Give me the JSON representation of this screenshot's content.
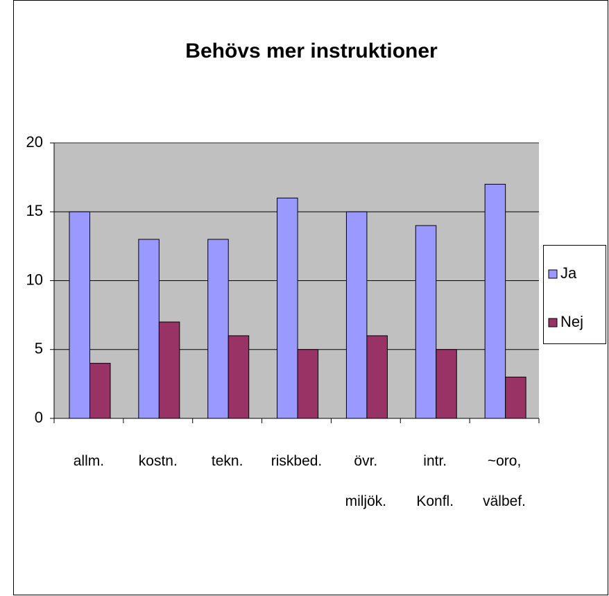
{
  "chart_data": {
    "type": "bar",
    "title": "Behövs mer instruktioner",
    "categories": [
      "allm.",
      "kostn.",
      "tekn.",
      "riskbed.",
      "övr. miljök.",
      "intr. Konfl.",
      "~oro, välbef."
    ],
    "series": [
      {
        "name": "Ja",
        "color": "#9999ff",
        "values": [
          15,
          13,
          13,
          16,
          15,
          14,
          17
        ]
      },
      {
        "name": "Nej",
        "color": "#993366",
        "values": [
          4,
          7,
          6,
          5,
          6,
          5,
          3
        ]
      }
    ],
    "ylim": [
      0,
      20
    ],
    "yticks": [
      0,
      5,
      10,
      15,
      20
    ],
    "grid": true,
    "legend": "right"
  }
}
